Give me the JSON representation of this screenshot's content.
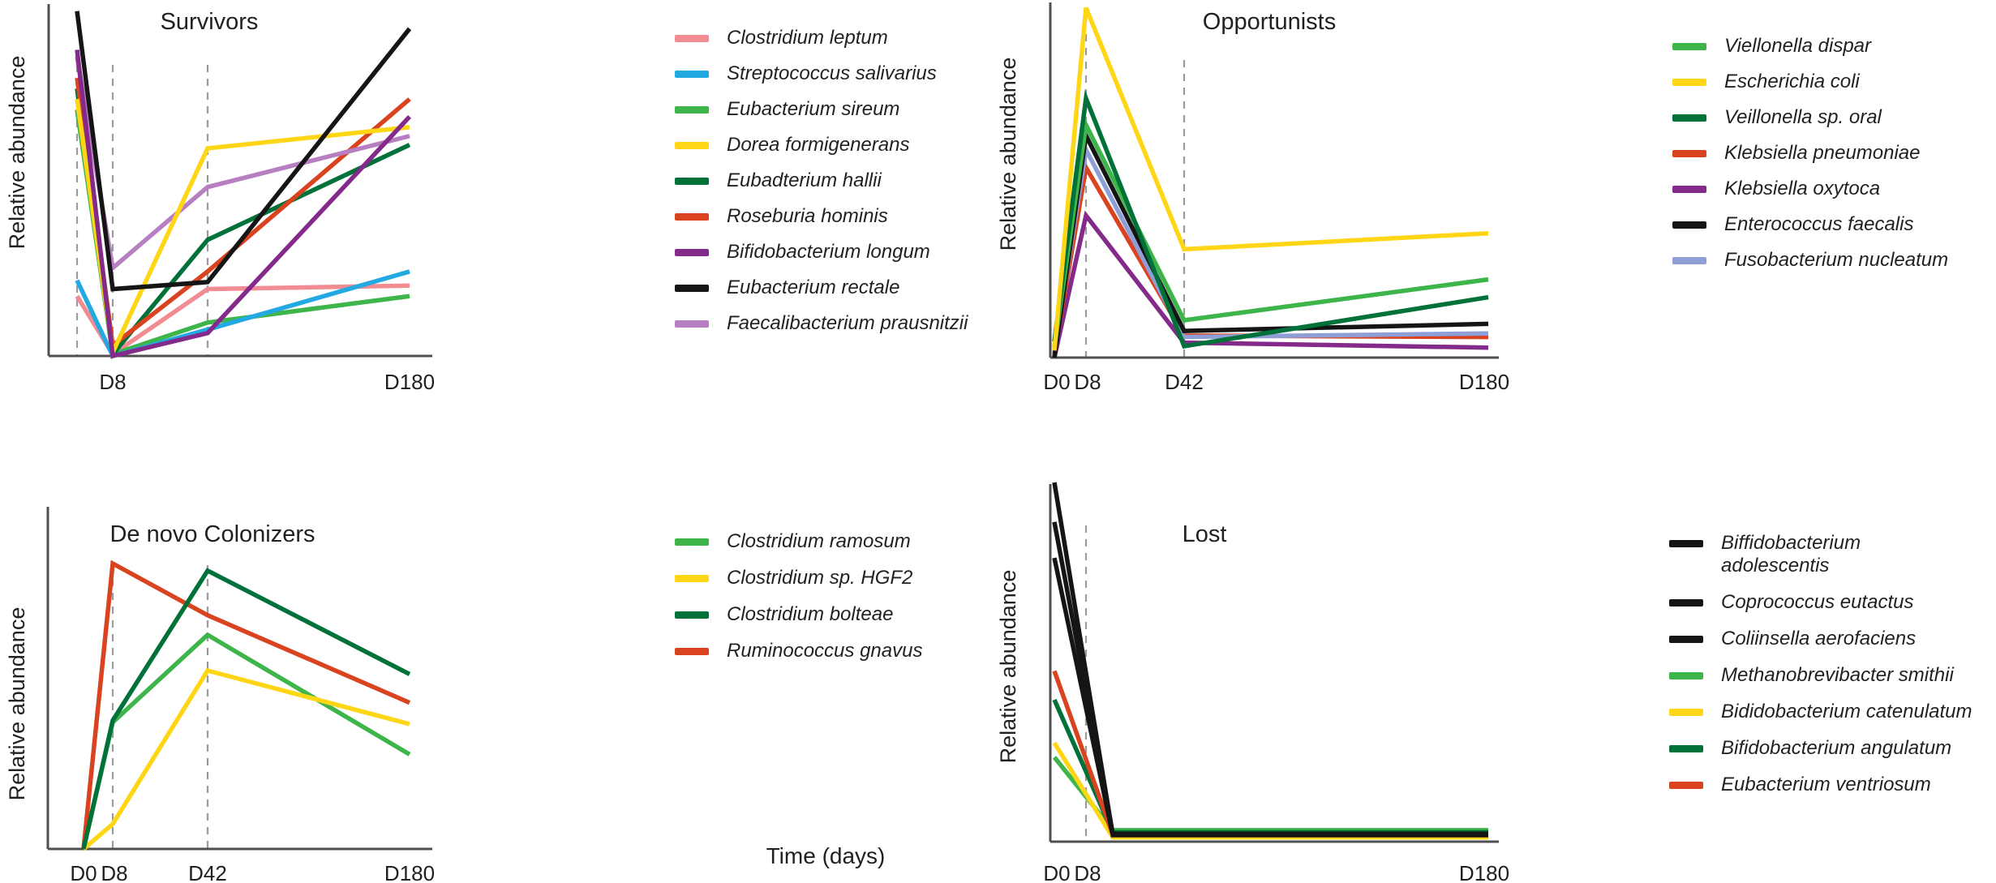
{
  "figure": {
    "xlabel": "Time (days)",
    "ylabel": "Relative abundance"
  },
  "chart_data": [
    {
      "type": "line",
      "title": "Survivors",
      "ylabel": "Relative abundance",
      "x": [
        "D0",
        "D8",
        "D42",
        "D180"
      ],
      "x_axis_ticks_shown": [
        "D8",
        "D180"
      ],
      "vlines_dashed_at": [
        "D0",
        "D8",
        "D42"
      ],
      "y_unit": "relative abundance, normalized 0-1 (no y tick labels shown)",
      "series": [
        {
          "name": "Clostridium leptum",
          "color": "#F18C92",
          "values": [
            0.17,
            0.005,
            0.19,
            0.2
          ]
        },
        {
          "name": "Streptococcus salivarius",
          "color": "#23A9E1",
          "values": [
            0.215,
            0.0,
            0.075,
            0.24
          ]
        },
        {
          "name": "Eubacterium sireum",
          "color": "#3DB54A",
          "values": [
            0.7,
            0.005,
            0.095,
            0.17
          ]
        },
        {
          "name": "Dorea formigenerans",
          "color": "#FFD616",
          "values": [
            0.73,
            0.01,
            0.59,
            0.65
          ]
        },
        {
          "name": "Eubadterium hallii",
          "color": "#007138",
          "values": [
            0.76,
            0.005,
            0.33,
            0.6
          ]
        },
        {
          "name": "Roseburia hominis",
          "color": "#DA431F",
          "values": [
            0.79,
            0.03,
            0.24,
            0.73
          ]
        },
        {
          "name": "Bifidobacterium longum",
          "color": "#832A8B",
          "values": [
            0.87,
            0.0,
            0.065,
            0.68
          ]
        },
        {
          "name": "Eubacterium rectale",
          "color": "#151515",
          "values": [
            0.98,
            0.19,
            0.21,
            0.93
          ]
        },
        {
          "name": "Faecalibacterium prausnitzii",
          "color": "#B77FC1",
          "values": [
            0.85,
            0.25,
            0.48,
            0.625
          ]
        }
      ]
    },
    {
      "type": "line",
      "title": "Opportunists",
      "ylabel": "Relative abundance",
      "x": [
        "D0",
        "D8",
        "D42",
        "D180"
      ],
      "x_axis_ticks_shown": [
        "D0",
        "D8",
        "D42",
        "D180"
      ],
      "vlines_dashed_at": [
        "D8",
        "D42"
      ],
      "y_unit": "relative abundance, normalized 0-1 (no y tick labels shown)",
      "series": [
        {
          "name": "Viellonella dispar",
          "color": "#3DB54A",
          "values": [
            0.03,
            0.655,
            0.105,
            0.22
          ]
        },
        {
          "name": "Escherichia coli",
          "color": "#FFD616",
          "values": [
            0.02,
            0.985,
            0.305,
            0.35
          ]
        },
        {
          "name": "Veillonella sp. oral",
          "color": "#007138",
          "values": [
            0.045,
            0.73,
            0.032,
            0.17
          ]
        },
        {
          "name": "Klebsiella pneumoniae",
          "color": "#DA431F",
          "values": [
            0.01,
            0.535,
            0.062,
            0.058
          ]
        },
        {
          "name": "Klebsiella oxytoca",
          "color": "#832A8B",
          "values": [
            0.0,
            0.4,
            0.042,
            0.028
          ]
        },
        {
          "name": "Enterococcus faecalis",
          "color": "#151515",
          "values": [
            0.0,
            0.625,
            0.075,
            0.095
          ]
        },
        {
          "name": "Fusobacterium nucleatum",
          "color": "#8E9ED6",
          "values": [
            0.015,
            0.585,
            0.058,
            0.068
          ]
        }
      ]
    },
    {
      "type": "line",
      "title": "De novo Colonizers",
      "ylabel": "Relative abundance",
      "x": [
        "D0",
        "D8",
        "D42",
        "D180"
      ],
      "x_axis_ticks_shown": [
        "D0",
        "D8",
        "D42",
        "D180"
      ],
      "vlines_dashed_at": [
        "D8",
        "D42"
      ],
      "y_unit": "relative abundance, normalized 0-1 (no y tick labels shown)",
      "series": [
        {
          "name": "Clostridium ramosum",
          "color": "#3DB54A",
          "values": [
            0.0,
            0.355,
            0.6,
            0.265
          ]
        },
        {
          "name": "Clostridium sp. HGF2",
          "color": "#FFD616",
          "values": [
            0.0,
            0.07,
            0.5,
            0.35
          ]
        },
        {
          "name": "Clostridium bolteae",
          "color": "#007138",
          "values": [
            0.0,
            0.36,
            0.78,
            0.49
          ]
        },
        {
          "name": "Ruminococcus gnavus",
          "color": "#DA431F",
          "values": [
            0.0,
            0.8,
            0.655,
            0.41
          ]
        }
      ]
    },
    {
      "type": "line",
      "title": "Lost",
      "ylabel": "Relative abundance",
      "x": [
        "D0",
        "D8",
        "D180"
      ],
      "x_axis_ticks_shown": [
        "D0",
        "D8",
        "D180"
      ],
      "vlines_dashed_at": [
        "D8"
      ],
      "y_unit": "relative abundance, normalized 0-1 (no y tick labels shown)",
      "series": [
        {
          "name": "Biffidobacterium\nadolescentis",
          "color": "#151515",
          "values": [
            1.0,
            0.02,
            0.02
          ]
        },
        {
          "name": "Coprococcus eutactus",
          "color": "#151515",
          "values": [
            0.79,
            0.018,
            0.018
          ]
        },
        {
          "name": "Coliinsella aerofaciens",
          "color": "#151515",
          "values": [
            0.89,
            0.022,
            0.022
          ]
        },
        {
          "name": "Methanobrevibacter smithii",
          "color": "#3DB54A",
          "values": [
            0.235,
            0.032,
            0.032
          ]
        },
        {
          "name": "Bididobacterium catenulatum",
          "color": "#FFD616",
          "values": [
            0.275,
            0.012,
            0.012
          ]
        },
        {
          "name": "Bifidobacterium angulatum",
          "color": "#007138",
          "values": [
            0.395,
            0.026,
            0.026
          ]
        },
        {
          "name": "Eubacterium ventriosum",
          "color": "#DA431F",
          "values": [
            0.475,
            0.02,
            0.02
          ]
        }
      ]
    }
  ]
}
